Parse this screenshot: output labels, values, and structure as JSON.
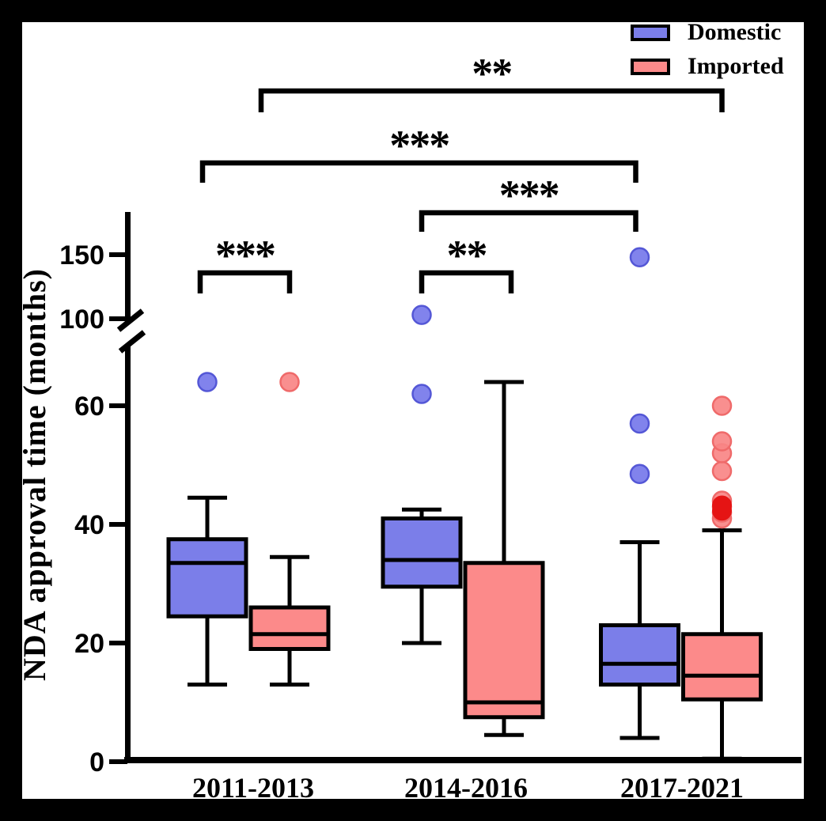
{
  "figure": {
    "background_color": "#000000",
    "plot_background_color": "#ffffff"
  },
  "legend": {
    "items": [
      {
        "label": "Domestic",
        "color": "#7b7ee9"
      },
      {
        "label": "Imported",
        "color": "#fc8a8a"
      }
    ]
  },
  "chart_data": {
    "type": "boxplot",
    "title": "",
    "ylabel": "NDA approval time (months)",
    "xlabel": "",
    "categories": [
      "2011-2013",
      "2014-2016",
      "2017-2021"
    ],
    "y_ticks": [
      0,
      20,
      40,
      60,
      100,
      150
    ],
    "y_tick_labels": [
      "0",
      "20",
      "40",
      "60",
      "100",
      "150"
    ],
    "axis_break": {
      "between_values": [
        68,
        100
      ]
    },
    "outlier_emphasis_color": "#e51414",
    "series": [
      {
        "name": "Domestic",
        "color": "#7b7ee9",
        "outlier_fill": "#7678ea",
        "outlier_stroke": "#5457d6",
        "boxes": [
          {
            "category": "2011-2013",
            "whisker_low": 13,
            "q1": 24.5,
            "median": 33.5,
            "q3": 37.5,
            "whisker_high": 44.5,
            "outliers": [
              64
            ]
          },
          {
            "category": "2014-2016",
            "whisker_low": 20,
            "q1": 29.5,
            "median": 34,
            "q3": 41,
            "whisker_high": 42.5,
            "outliers": [
              62,
              103
            ]
          },
          {
            "category": "2017-2021",
            "whisker_low": 4,
            "q1": 13,
            "median": 16.5,
            "q3": 23,
            "whisker_high": 37,
            "outliers": [
              48.5,
              57,
              148
            ]
          }
        ]
      },
      {
        "name": "Imported",
        "color": "#fc8a8a",
        "outlier_fill": "#f98585",
        "outlier_stroke": "#ef6a6a",
        "boxes": [
          {
            "category": "2011-2013",
            "whisker_low": 13,
            "q1": 19,
            "median": 21.5,
            "q3": 26,
            "whisker_high": 34.5,
            "outliers": [
              64
            ]
          },
          {
            "category": "2014-2016",
            "whisker_low": 4.5,
            "q1": 7.5,
            "median": 10,
            "q3": 33.5,
            "whisker_high": 64,
            "outliers": []
          },
          {
            "category": "2017-2021",
            "whisker_low": 0.5,
            "q1": 10.5,
            "median": 14.5,
            "q3": 21.5,
            "whisker_high": 39,
            "outliers": [
              41,
              42,
              43,
              44,
              49,
              52,
              54,
              60
            ],
            "outliers_emphasis": [
              42.3,
              43.2
            ]
          }
        ]
      }
    ],
    "significance": [
      {
        "label": "***",
        "a": {
          "cat": 0,
          "series": 0
        },
        "b": {
          "cat": 0,
          "series": 1
        },
        "level": 1
      },
      {
        "label": "**",
        "a": {
          "cat": 1,
          "series": 0
        },
        "b": {
          "cat": 1,
          "series": 1
        },
        "level": 1
      },
      {
        "label": "***",
        "a": {
          "cat": 1,
          "series": 0
        },
        "b": {
          "cat": 2,
          "series": 0
        },
        "level": 2
      },
      {
        "label": "***",
        "a": {
          "cat": 0,
          "series": 0
        },
        "b": {
          "cat": 2,
          "series": 0
        },
        "level": 3
      },
      {
        "label": "**",
        "a": {
          "cat": 0,
          "series": 1
        },
        "b": {
          "cat": 2,
          "series": 1
        },
        "level": 4
      }
    ]
  }
}
